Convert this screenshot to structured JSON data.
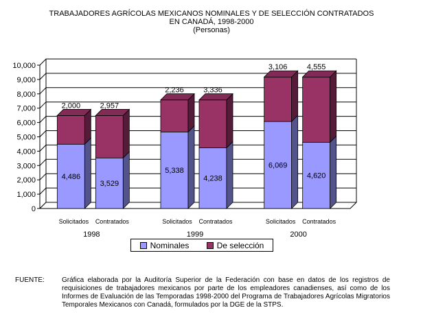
{
  "header": {
    "title_line1": "TRABAJADORES AGRÍCOLAS MEXICANOS NOMINALES Y DE SELECCIÓN CONTRATADOS",
    "title_line2": "EN CANADÁ, 1998-2000",
    "subtitle": "(Personas)"
  },
  "chart_data": {
    "type": "bar",
    "stacked": true,
    "three_d": true,
    "groups": [
      "1998",
      "1999",
      "2000"
    ],
    "categories": [
      "Solicitados",
      "Contratados",
      "Solicitados",
      "Contratados",
      "Solicitados",
      "Contratados"
    ],
    "category_group": [
      "1998",
      "1998",
      "1999",
      "1999",
      "2000",
      "2000"
    ],
    "series": [
      {
        "name": "Nominales",
        "color": "#9999ff",
        "values": [
          4486,
          3529,
          5338,
          4238,
          6069,
          4620
        ]
      },
      {
        "name": "De selección",
        "color": "#993366",
        "values": [
          2000,
          2957,
          2236,
          3336,
          3106,
          4555
        ]
      }
    ],
    "value_labels": {
      "Nominales": [
        "4,486",
        "3,529",
        "5,338",
        "4,238",
        "6,069",
        "4,620"
      ],
      "De selección": [
        "2,000",
        "2,957",
        "2,236",
        "3,336",
        "3,106",
        "4,555"
      ]
    },
    "y_ticks": [
      "0",
      "1,000",
      "2,000",
      "3,000",
      "4,000",
      "5,000",
      "6,000",
      "7,000",
      "8,000",
      "9,000",
      "10,000"
    ],
    "ylim": [
      0,
      10000
    ],
    "grid": true,
    "legend_position": "bottom"
  },
  "source": {
    "label": "FUENTE:",
    "text": "Gráfica elaborada por la Auditoría Superior de la Federación con base en datos de los registros de requisiciones de trabajadores mexicanos por parte de los empleadores canadienses, así como de los Informes de Evaluación de las Temporadas 1998-2000 del Programa de Trabajadores Agrícolas Migratorios Temporales Mexicanos con Canadá, formulados por la DGE de la STPS."
  }
}
